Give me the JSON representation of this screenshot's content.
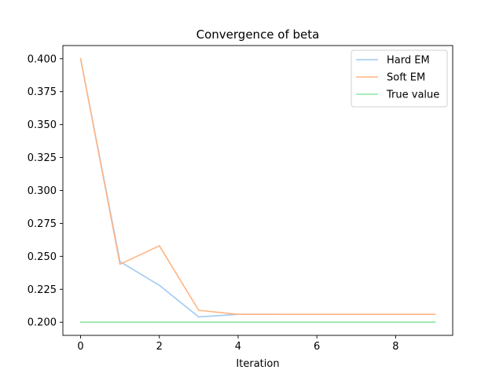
{
  "chart_data": {
    "type": "line",
    "title": "Convergence of beta",
    "xlabel": "Iteration",
    "ylabel": "",
    "xlim": [
      -0.45,
      9.45
    ],
    "ylim": [
      0.19,
      0.41
    ],
    "x_ticks": [
      0,
      2,
      4,
      6,
      8
    ],
    "y_ticks": [
      0.2,
      0.225,
      0.25,
      0.275,
      0.3,
      0.325,
      0.35,
      0.375,
      0.4
    ],
    "grid": false,
    "legend_position": "top-right",
    "series": [
      {
        "name": "Hard EM",
        "color": "#a1c9f4",
        "x": [
          0,
          1,
          2,
          3,
          4,
          5
        ],
        "y": [
          0.4,
          0.246,
          0.228,
          0.204,
          0.206,
          0.206
        ]
      },
      {
        "name": "Soft EM",
        "color": "#ffb482",
        "x": [
          0,
          1,
          2,
          3,
          4,
          5,
          6,
          7,
          8,
          9
        ],
        "y": [
          0.4,
          0.244,
          0.258,
          0.209,
          0.206,
          0.206,
          0.206,
          0.206,
          0.206,
          0.206
        ]
      },
      {
        "name": "True value",
        "color": "#8de5a1",
        "x": [
          0,
          9
        ],
        "y": [
          0.2,
          0.2
        ]
      }
    ]
  }
}
